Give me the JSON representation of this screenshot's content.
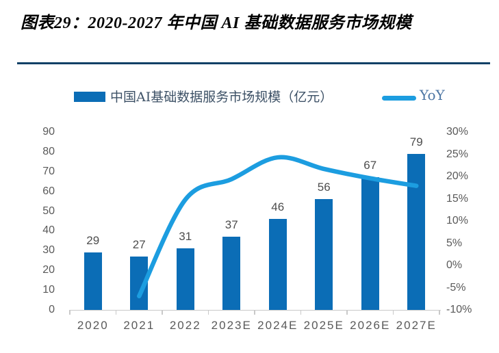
{
  "title": "图表29：2020-2027 年中国 AI 基础数据服务市场规模",
  "legend": {
    "bars_label": "中国AI基础数据服务市场规模（亿元）",
    "line_label": "YoY"
  },
  "colors": {
    "bar": "#0b6db6",
    "line": "#1c9de0",
    "rule": "#0e4066",
    "axis_text": "#595959",
    "value_label": "#4d4d4d",
    "legend_text": "#3d5166",
    "yoy_text": "#4d76a4",
    "axis_line": "#c9c9c9",
    "title": "#000000"
  },
  "chart_data": {
    "type": "bar",
    "subtype": "bar+line-combo",
    "categories": [
      "2020",
      "2021",
      "2022",
      "2023E",
      "2024E",
      "2025E",
      "2026E",
      "2027E"
    ],
    "series": [
      {
        "name": "中国AI基础数据服务市场规模（亿元）",
        "type": "bar",
        "axis": "left",
        "values": [
          29,
          27,
          31,
          37,
          46,
          56,
          67,
          79
        ],
        "data_labels": [
          "29",
          "27",
          "31",
          "37",
          "46",
          "56",
          "67",
          "79"
        ]
      },
      {
        "name": "YoY",
        "type": "line",
        "axis": "right",
        "values": [
          null,
          -6.9,
          14.8,
          19.4,
          24.3,
          21.7,
          19.6,
          17.9
        ]
      }
    ],
    "left_axis": {
      "min": 0,
      "max": 90,
      "step": 10,
      "ticks": [
        "0",
        "10",
        "20",
        "30",
        "40",
        "50",
        "60",
        "70",
        "80",
        "90"
      ]
    },
    "right_axis": {
      "min": -10,
      "max": 30,
      "step": 5,
      "ticks": [
        "-10%",
        "-5%",
        "0%",
        "5%",
        "10%",
        "15%",
        "20%",
        "25%",
        "30%"
      ]
    },
    "grid": false,
    "legend_position": "top"
  }
}
